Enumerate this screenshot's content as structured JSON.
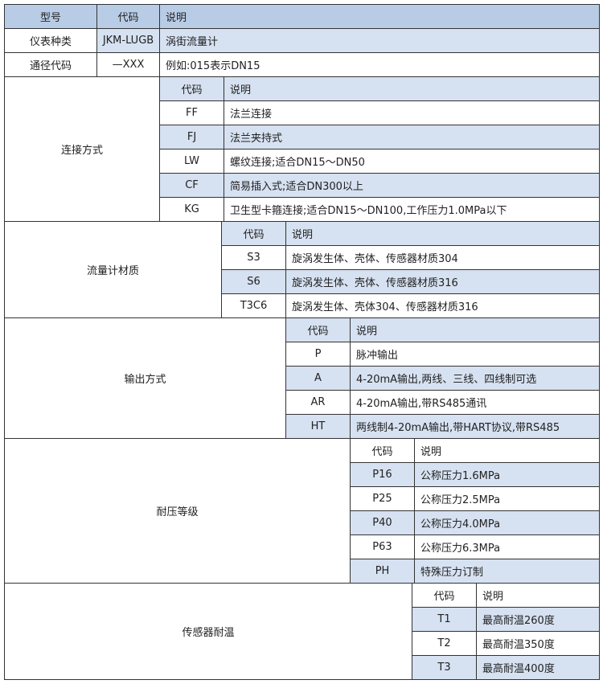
{
  "colors": {
    "header": "#b9cce6",
    "shaded": "#d6e1f1",
    "border": "#333333"
  },
  "top": {
    "header": [
      "型号",
      "代码",
      "说明"
    ],
    "rows": [
      [
        "仪表种类",
        "JKM-LUGB",
        "涡街流量计"
      ],
      [
        "通径代码",
        "—XXX",
        "例如:015表示DN15"
      ]
    ]
  },
  "sections": [
    {
      "label": "连接方式",
      "header": [
        "代码",
        "说明"
      ],
      "header_shaded": true,
      "first_row_shaded": false,
      "rows": [
        [
          "FF",
          "法兰连接"
        ],
        [
          "FJ",
          "法兰夹持式"
        ],
        [
          "LW",
          "螺纹连接;适合DN15～DN50"
        ],
        [
          "CF",
          "简易插入式;适合DN300以上"
        ],
        [
          "KG",
          "卫生型卡箍连接;适合DN15～DN100,工作压力1.0MPa以下"
        ]
      ]
    },
    {
      "label": "流量计材质",
      "header": [
        "代码",
        "说明"
      ],
      "header_shaded": true,
      "first_row_shaded": false,
      "rows": [
        [
          "S3",
          "旋涡发生体、壳体、传感器材质304"
        ],
        [
          "S6",
          "旋涡发生体、壳体、传感器材质316"
        ],
        [
          "T3C6",
          "旋涡发生体、壳体304、传感器材质316"
        ]
      ]
    },
    {
      "label": "输出方式",
      "header": [
        "代码",
        "说明"
      ],
      "header_shaded": true,
      "first_row_shaded": false,
      "rows": [
        [
          "P",
          "脉冲输出"
        ],
        [
          "A",
          "4-20mA输出,两线、三线、四线制可选"
        ],
        [
          "AR",
          "4-20mA输出,带RS485通讯"
        ],
        [
          "HT",
          "两线制4-20mA输出,带HART协议,带RS485"
        ]
      ]
    },
    {
      "label": "耐压等级",
      "header": [
        "代码",
        "说明"
      ],
      "header_shaded": false,
      "first_row_shaded": true,
      "rows": [
        [
          "P16",
          "公称压力1.6MPa"
        ],
        [
          "P25",
          "公称压力2.5MPa"
        ],
        [
          "P40",
          "公称压力4.0MPa"
        ],
        [
          "P63",
          "公称压力6.3MPa"
        ],
        [
          "PH",
          "特殊压力订制"
        ]
      ]
    },
    {
      "label": "传感器耐温",
      "header": [
        "代码",
        "说明"
      ],
      "header_shaded": false,
      "first_row_shaded": true,
      "rows": [
        [
          "T1",
          "最高耐温260度"
        ],
        [
          "T2",
          "最高耐温350度"
        ],
        [
          "T3",
          "最高耐温400度"
        ]
      ]
    }
  ]
}
